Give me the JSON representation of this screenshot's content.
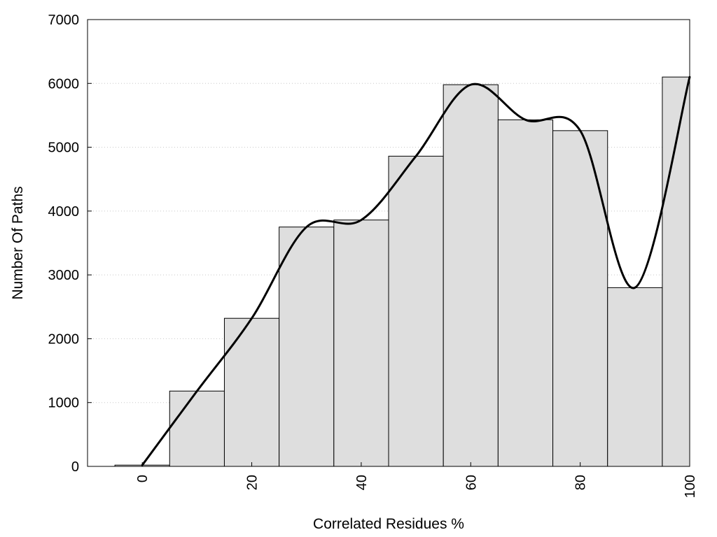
{
  "chart_data": {
    "type": "bar",
    "xlabel": "Correlated Residues %",
    "ylabel": "Number Of Paths",
    "xlim": [
      -10,
      100
    ],
    "ylim": [
      0,
      7000
    ],
    "x_ticks": [
      0,
      20,
      40,
      60,
      80,
      100
    ],
    "x_tick_labels": [
      "0",
      "20",
      "40",
      "60",
      "80",
      "100"
    ],
    "y_ticks": [
      0,
      1000,
      2000,
      3000,
      4000,
      5000,
      6000,
      7000
    ],
    "y_tick_labels": [
      "0",
      "1000",
      "2000",
      "3000",
      "4000",
      "5000",
      "6000",
      "7000"
    ],
    "bin_width": 10,
    "x": [
      0,
      10,
      20,
      30,
      40,
      50,
      60,
      70,
      80,
      90,
      100
    ],
    "values": [
      20,
      1180,
      2320,
      3750,
      3860,
      4860,
      5980,
      5430,
      5260,
      2800,
      6100
    ],
    "smooth_curve": true,
    "grid": "horizontal dotted",
    "legend": "none",
    "colors": {
      "bar_fill": "#dedede",
      "bar_stroke": "#000000",
      "curve": "#000000",
      "grid": "#c8c8c8"
    }
  }
}
